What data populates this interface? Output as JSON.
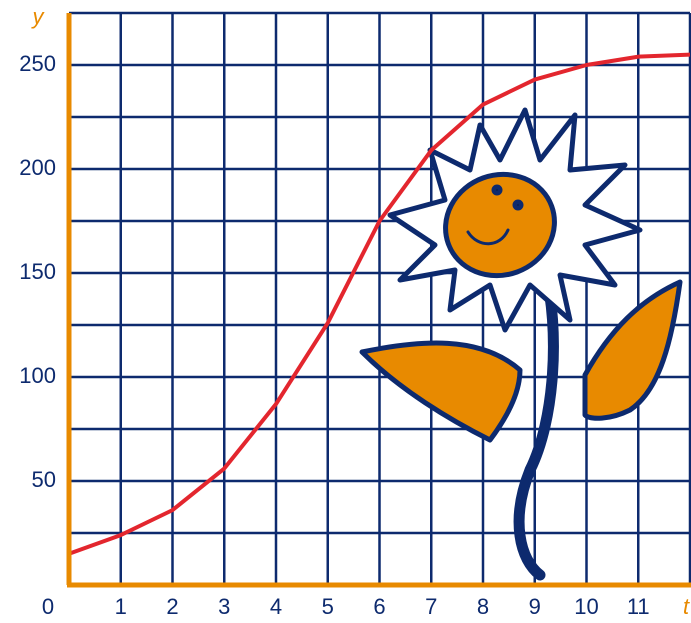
{
  "chart_data": {
    "type": "line",
    "x_label": "t",
    "y_label": "y",
    "x": [
      0,
      1,
      2,
      3,
      4,
      5,
      6,
      7,
      8,
      9,
      10,
      11,
      12
    ],
    "values": [
      15,
      24,
      36,
      56,
      87,
      126,
      175,
      209,
      231,
      243,
      250,
      254,
      255
    ],
    "color": "#e3262e",
    "xlim": [
      0,
      12
    ],
    "ylim": [
      0,
      275
    ],
    "xticks": [
      0,
      1,
      2,
      3,
      4,
      5,
      6,
      7,
      8,
      9,
      10,
      11
    ],
    "yticks": [
      50,
      100,
      150,
      200,
      250
    ],
    "minor_yticks": [
      25,
      75,
      125,
      175,
      225,
      275
    ],
    "grid": true,
    "grid_color": "#0d2a6e",
    "axis_color": "#e88a00"
  }
}
